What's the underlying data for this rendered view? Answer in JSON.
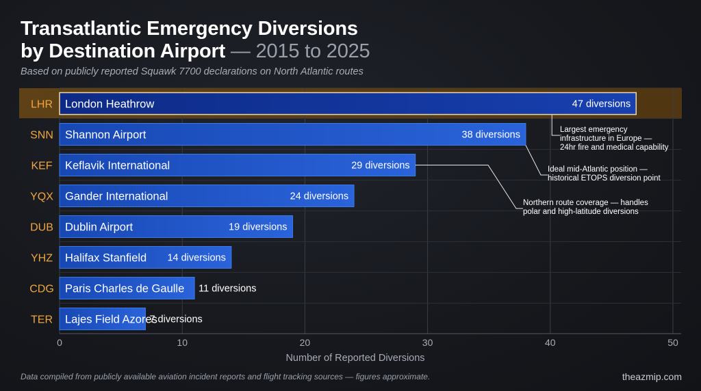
{
  "header": {
    "title_line1": "Transatlantic Emergency Diversions",
    "title_line2": "by Destination Airport",
    "title_suffix": "— 2015 to 2025",
    "subtitle": "Based on publicly reported Squawk 7700 declarations on North Atlantic routes"
  },
  "footer": {
    "note": "Data compiled from publicly available aviation incident reports and flight tracking sources — figures approximate.",
    "site": "theazmip.com"
  },
  "chart_data": {
    "type": "bar",
    "orientation": "horizontal",
    "xlabel": "Number of Reported Diversions",
    "xlim": [
      0,
      50
    ],
    "xticks": [
      0,
      10,
      20,
      30,
      40,
      50
    ],
    "grid": true,
    "categories": [
      "LHR",
      "SNN",
      "KEF",
      "YQX",
      "DUB",
      "YHZ",
      "CDG",
      "TER"
    ],
    "bar_labels": [
      "London Heathrow",
      "Shannon Airport",
      "Keflavik International",
      "Gander International",
      "Dublin Airport",
      "Halifax Stanfield",
      "Paris Charles de Gaulle",
      "Lajes Field Azores"
    ],
    "values": [
      47,
      38,
      29,
      24,
      19,
      14,
      11,
      7
    ],
    "value_labels": [
      "47 diversions",
      "38 diversions",
      "29 diversions",
      "24 diversions",
      "19 diversions",
      "14 diversions",
      "11 diversions",
      "7 diversions"
    ],
    "highlight": "LHR",
    "annotations": [
      {
        "target": "LHR",
        "lines": [
          "Largest emergency",
          "infrastructure in Europe —",
          "24hr fire and medical capability"
        ]
      },
      {
        "target": "SNN",
        "lines": [
          "Ideal mid-Atlantic position —",
          "historical ETOPS diversion point"
        ]
      },
      {
        "target": "KEF",
        "lines": [
          "Northern route coverage — handles",
          "polar and high-latitude diversions"
        ]
      }
    ],
    "colors": {
      "bar": "#1a4fc0",
      "bar_highlight": "#0f2f8f",
      "highlight_band": "#5a3d12",
      "category_label": "#f0a640"
    }
  }
}
